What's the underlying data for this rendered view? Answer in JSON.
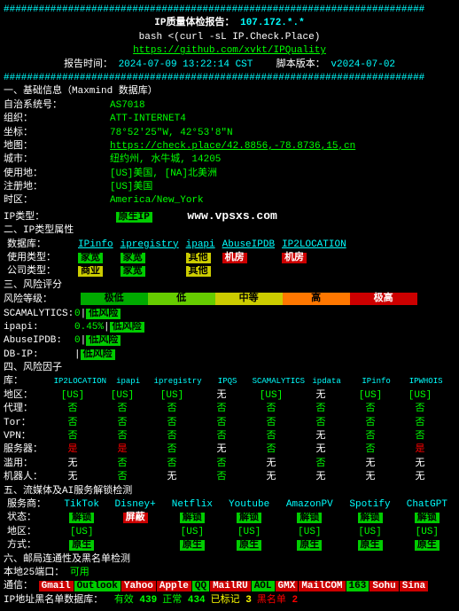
{
  "header": {
    "divider": "########################################################################",
    "title": "IP质量体检报告：",
    "ip": "107.172.*.*",
    "bash_cmd": "bash <(curl -sL IP.Check.Place)",
    "github_url": "https://github.com/xvkt/IPQuality",
    "report_time_label": "报告时间：",
    "report_time": "2024-07-09 13:22:14 CST",
    "script_ver_label": "脚本版本：",
    "script_ver": "v2024-07-02"
  },
  "section1": {
    "title": "一、基础信息（Maxmind 数据库）",
    "asn_label": "自治系统号：",
    "asn": "AS7018",
    "org_label": "组织：",
    "org": "ATT-INTERNET4",
    "coord_label": "坐标：",
    "coord": "78°52'25\"W, 42°53'8\"N",
    "map_label": "地图：",
    "map_url": "https://check.place/42.8856,-78.8736,15,cn",
    "city_label": "城市：",
    "city": "纽约州, 水牛城, 14205",
    "use_label": "使用地：",
    "use": "[US]美国, [NA]北美洲",
    "reg_label": "注册地：",
    "reg": "[US]美国",
    "tz_label": "时区：",
    "tz": "America/New_York",
    "iptype_label": "IP类型：",
    "iptype": "原生IP",
    "watermark": "www.vpsxs.com"
  },
  "section2": {
    "title": "二、IP类型属性",
    "db_label": "数据库：",
    "dbs": [
      "IPinfo",
      "ipregistry",
      "ipapi",
      "AbuseIPDB",
      "IP2LOCATION"
    ],
    "usage_label": "使用类型：",
    "usage_vals": [
      "家宽",
      "家宽",
      "其他",
      "机房",
      "机房"
    ],
    "company_label": "公司类型：",
    "company_vals": [
      "商业",
      "家宽",
      "其他"
    ]
  },
  "section3": {
    "title": "三、风险评分",
    "level_label": "风险等级：",
    "levels": [
      "极低",
      "低",
      "中等",
      "高",
      "极高"
    ],
    "rows": [
      {
        "label": "SCAMALYTICS:",
        "val": "0",
        "risk": "低风险"
      },
      {
        "label": "ipapi:",
        "val": "0.45%",
        "risk": "低风险"
      },
      {
        "label": "AbuseIPDB:",
        "val": "0",
        "risk": "低风险"
      },
      {
        "label": "DB-IP:",
        "val": "",
        "risk": "低风险"
      }
    ]
  },
  "section4": {
    "title": "四、风险因子",
    "db_label": "库：",
    "dbs": [
      "IP2LOCATION",
      "ipapi",
      "ipregistry",
      "IPQS",
      "SCAMALYTICS",
      "ipdata",
      "IPinfo",
      "IPWHOIS"
    ],
    "rows": [
      {
        "label": "地区：",
        "vals": [
          "[US]",
          "[US]",
          "[US]",
          "无",
          "[US]",
          "无",
          "[US]",
          "[US]"
        ],
        "styles": [
          "g",
          "g",
          "g",
          "w",
          "g",
          "w",
          "g",
          "g"
        ]
      },
      {
        "label": "代理：",
        "vals": [
          "否",
          "否",
          "否",
          "否",
          "否",
          "否",
          "否",
          "否"
        ],
        "styles": [
          "g",
          "g",
          "g",
          "g",
          "g",
          "g",
          "g",
          "g"
        ]
      },
      {
        "label": "Tor：",
        "vals": [
          "否",
          "否",
          "否",
          "否",
          "否",
          "否",
          "否",
          "否"
        ],
        "styles": [
          "g",
          "g",
          "g",
          "g",
          "g",
          "g",
          "g",
          "g"
        ]
      },
      {
        "label": "VPN：",
        "vals": [
          "否",
          "否",
          "否",
          "否",
          "否",
          "无",
          "否",
          "否"
        ],
        "styles": [
          "g",
          "g",
          "g",
          "g",
          "g",
          "w",
          "g",
          "g"
        ]
      },
      {
        "label": "服务器：",
        "vals": [
          "是",
          "是",
          "否",
          "无",
          "否",
          "无",
          "否",
          "是"
        ],
        "styles": [
          "r",
          "r",
          "g",
          "w",
          "g",
          "w",
          "g",
          "r"
        ]
      },
      {
        "label": "滥用：",
        "vals": [
          "无",
          "否",
          "否",
          "否",
          "无",
          "否",
          "无",
          "无"
        ],
        "styles": [
          "w",
          "g",
          "g",
          "g",
          "w",
          "g",
          "w",
          "w"
        ]
      },
      {
        "label": "机器人：",
        "vals": [
          "无",
          "否",
          "无",
          "否",
          "无",
          "无",
          "无",
          "无"
        ],
        "styles": [
          "w",
          "g",
          "w",
          "g",
          "w",
          "w",
          "w",
          "w"
        ]
      }
    ]
  },
  "section5": {
    "title": "五、流媒体及AI服务解锁检测",
    "svc_label": "服务商：",
    "svcs": [
      "TikTok",
      "Disney+",
      "Netflix",
      "Youtube",
      "AmazonPV",
      "Spotify",
      "ChatGPT"
    ],
    "status_label": "状态：",
    "status": [
      "解锁",
      "屏蔽",
      "解锁",
      "解锁",
      "解锁",
      "解锁",
      "解锁"
    ],
    "status_styles": [
      "bg-green",
      "bg-red",
      "bg-green",
      "bg-green",
      "bg-green",
      "bg-green",
      "bg-green"
    ],
    "region_label": "地区：",
    "region": [
      "[US]",
      "",
      "[US]",
      "[US]",
      "[US]",
      "[US]",
      "[US]"
    ],
    "mode_label": "方式：",
    "mode": [
      "原生",
      "",
      "原生",
      "原生",
      "原生",
      "原生",
      "原生"
    ]
  },
  "section6": {
    "title": "六、邮局连通性及黑名单检测",
    "port_label": "本地25端口：",
    "port_val": "可用",
    "conn_label": "通信：",
    "providers": [
      "Gmail",
      "Outlook",
      "Yahoo",
      "Apple",
      "QQ",
      "MailRU",
      "AOL",
      "GMX",
      "MailCOM",
      "163",
      "Sohu",
      "Sina"
    ],
    "provider_styles": [
      "bg-red",
      "bg-green",
      "bg-red",
      "bg-red",
      "bg-green",
      "bg-red",
      "bg-green",
      "bg-red",
      "bg-red",
      "bg-green",
      "bg-red",
      "bg-red"
    ],
    "bl_label": "IP地址黑名单数据库：",
    "bl_items": [
      {
        "label": "有效",
        "val": "439",
        "color": "green"
      },
      {
        "label": "正常",
        "val": "434",
        "color": "green"
      },
      {
        "label": "已标记",
        "val": "3",
        "color": "yellow"
      },
      {
        "label": "黑名单",
        "val": "2",
        "color": "red"
      }
    ]
  }
}
